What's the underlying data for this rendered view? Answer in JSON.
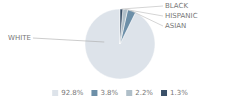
{
  "chart_data": {
    "type": "pie",
    "categories": [
      "WHITE",
      "ASIAN",
      "HISPANIC",
      "BLACK"
    ],
    "values": [
      92.8,
      3.8,
      2.2,
      1.3
    ],
    "value_labels": [
      "92.8%",
      "3.8%",
      "2.2%",
      "1.3%"
    ],
    "colors": [
      "#dde3ea",
      "#6d8fa8",
      "#b0bfc9",
      "#3a5068"
    ],
    "legend": "bottom"
  }
}
